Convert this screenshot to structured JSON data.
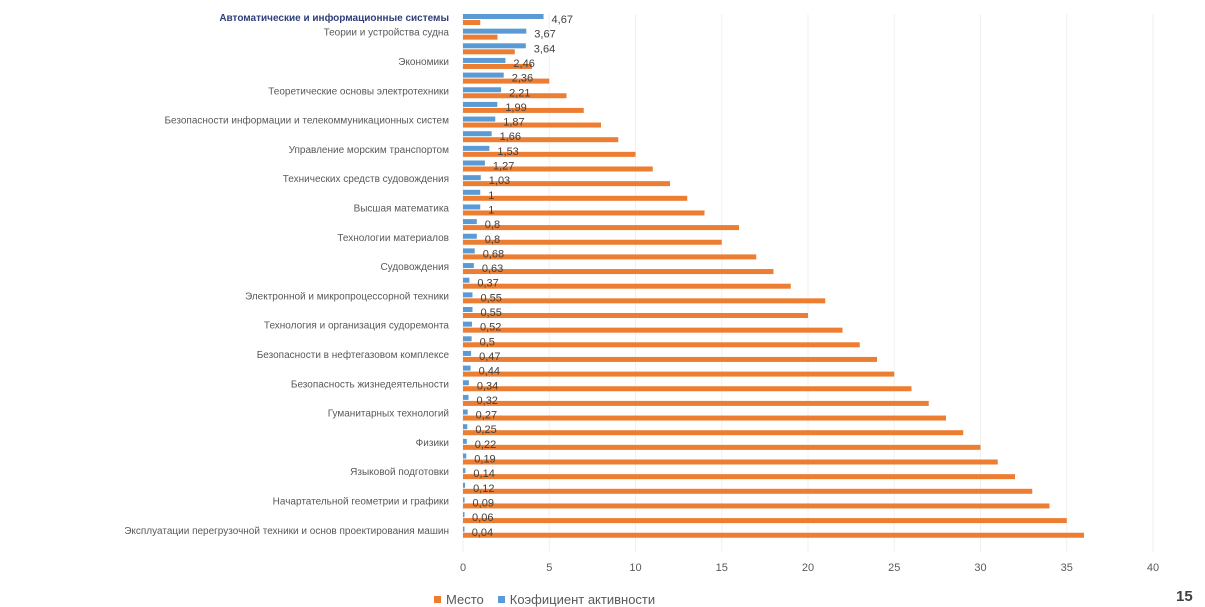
{
  "chart_data": {
    "type": "bar",
    "orientation": "horizontal",
    "highlighted_category": "Автоматические и информационные системы",
    "labeled_categories": [
      "Автоматические и информационные системы",
      "Теории и устройства судна",
      "Экономики",
      "Теоретические основы электротехники",
      "Безопасности информации и телекоммуникационных систем",
      "Управление морским транспортом",
      "Технических средств судовождения",
      "Высшая математика",
      "Технологии материалов",
      "Судовождения",
      "Электронной и микропроцессорной техники",
      "Технология и организация судоремонта",
      "Безопасности в нефтегазовом комплексе",
      "Безопасность жизнедеятельности",
      "Гуманитарных технологий",
      "Физики",
      "Языковой подготовки",
      "Начартательной геометрии и графики",
      "Эксплуатации перегрузочной техники и основ проектирования машин"
    ],
    "x_ticks": [
      "0",
      "5",
      "10",
      "15",
      "20",
      "25",
      "30",
      "35",
      "40"
    ],
    "xlim": [
      0,
      40
    ],
    "legend_position": "bottom",
    "series": [
      {
        "name": "Место",
        "color": "#ed7d31",
        "values": [
          1,
          2,
          3,
          4,
          5,
          6,
          7,
          8,
          9,
          10,
          11,
          12,
          13,
          14,
          16,
          15,
          17,
          18,
          19,
          21,
          20,
          22,
          23,
          24,
          25,
          26,
          27,
          28,
          29,
          30,
          31,
          32,
          33,
          34,
          35,
          36
        ]
      },
      {
        "name": "Коэфициент активности",
        "color": "#5b9bd5",
        "values": [
          4.67,
          3.67,
          3.64,
          2.46,
          2.36,
          2.21,
          1.99,
          1.87,
          1.66,
          1.53,
          1.27,
          1.03,
          1,
          1,
          0.8,
          0.8,
          0.68,
          0.63,
          0.37,
          0.55,
          0.55,
          0.52,
          0.5,
          0.47,
          0.44,
          0.34,
          0.32,
          0.27,
          0.25,
          0.22,
          0.19,
          0.14,
          0.12,
          0.09,
          0.06,
          0.04
        ],
        "labels": [
          "4,67",
          "3,67",
          "3,64",
          "2,46",
          "2,36",
          "2,21",
          "1,99",
          "1,87",
          "1,66",
          "1,53",
          "1,27",
          "1,03",
          "1",
          "1",
          "0,8",
          "0,8",
          "0,68",
          "0,63",
          "0,37",
          "0,55",
          "0,55",
          "0,52",
          "0,5",
          "0,47",
          "0,44",
          "0,34",
          "0,32",
          "0,27",
          "0,25",
          "0,22",
          "0,19",
          "0,14",
          "0,12",
          "0,09",
          "0,06",
          "0,04"
        ]
      }
    ],
    "label_rows": [
      0,
      1,
      3,
      5,
      7,
      9,
      11,
      13,
      15,
      17,
      19,
      21,
      23,
      25,
      27,
      29,
      31,
      33,
      35
    ]
  },
  "legend": {
    "place_label": "Место",
    "coef_label": "Коэфициент активности"
  },
  "slide_number": "15"
}
